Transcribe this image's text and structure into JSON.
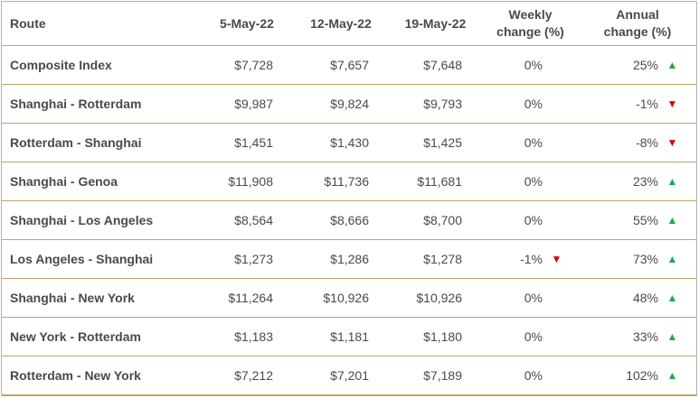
{
  "table": {
    "headers": {
      "route": "Route",
      "d1": "5-May-22",
      "d2": "12-May-22",
      "d3": "19-May-22",
      "weekly_line1": "Weekly",
      "weekly_line2": "change (%)",
      "annual_line1": "Annual",
      "annual_line2": "change (%)"
    },
    "rows": [
      {
        "route": "Composite Index",
        "d1": "$7,728",
        "d2": "$7,657",
        "d3": "$7,648",
        "weekly": "0%",
        "weekly_dir": "none",
        "annual": "25%",
        "annual_dir": "up"
      },
      {
        "route": "Shanghai - Rotterdam",
        "d1": "$9,987",
        "d2": "$9,824",
        "d3": "$9,793",
        "weekly": "0%",
        "weekly_dir": "none",
        "annual": "-1%",
        "annual_dir": "down"
      },
      {
        "route": "Rotterdam - Shanghai",
        "d1": "$1,451",
        "d2": "$1,430",
        "d3": "$1,425",
        "weekly": "0%",
        "weekly_dir": "none",
        "annual": "-8%",
        "annual_dir": "down"
      },
      {
        "route": "Shanghai - Genoa",
        "d1": "$11,908",
        "d2": "$11,736",
        "d3": "$11,681",
        "weekly": "0%",
        "weekly_dir": "none",
        "annual": "23%",
        "annual_dir": "up"
      },
      {
        "route": "Shanghai - Los Angeles",
        "d1": "$8,564",
        "d2": "$8,666",
        "d3": "$8,700",
        "weekly": "0%",
        "weekly_dir": "none",
        "annual": "55%",
        "annual_dir": "up"
      },
      {
        "route": "Los Angeles - Shanghai",
        "d1": "$1,273",
        "d2": "$1,286",
        "d3": "$1,278",
        "weekly": "-1%",
        "weekly_dir": "down",
        "annual": "73%",
        "annual_dir": "up"
      },
      {
        "route": "Shanghai - New York",
        "d1": "$11,264",
        "d2": "$10,926",
        "d3": "$10,926",
        "weekly": "0%",
        "weekly_dir": "none",
        "annual": "48%",
        "annual_dir": "up"
      },
      {
        "route": "New York - Rotterdam",
        "d1": "$1,183",
        "d2": "$1,181",
        "d3": "$1,180",
        "weekly": "0%",
        "weekly_dir": "none",
        "annual": "33%",
        "annual_dir": "up"
      },
      {
        "route": "Rotterdam - New York",
        "d1": "$7,212",
        "d2": "$7,201",
        "d3": "$7,189",
        "weekly": "0%",
        "weekly_dir": "none",
        "annual": "102%",
        "annual_dir": "up"
      }
    ]
  },
  "colors": {
    "up": "#1eaa4a",
    "down": "#e00000",
    "rule": "#c0a464",
    "text": "#4a4a4a"
  }
}
